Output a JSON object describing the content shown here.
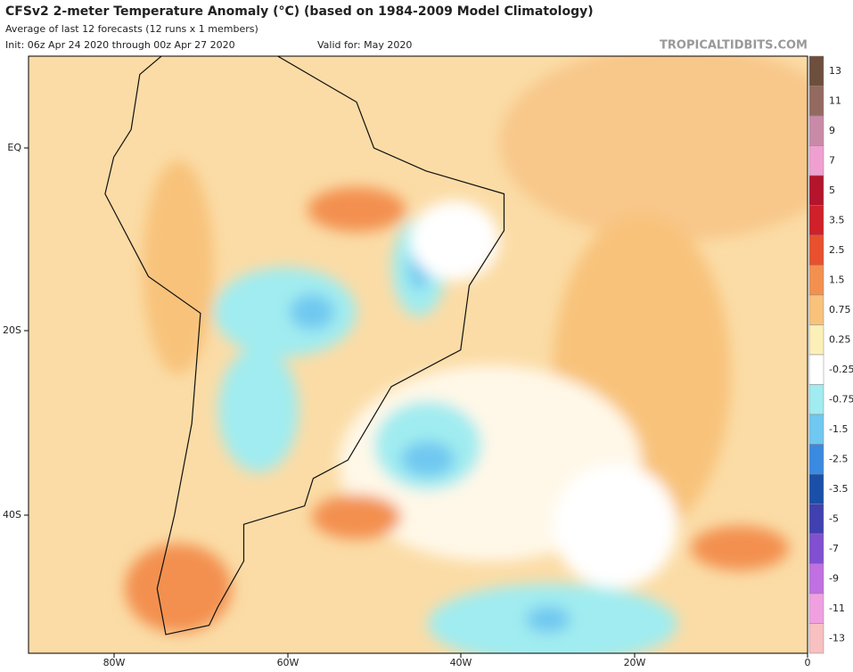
{
  "header": {
    "title": "CFSv2 2-meter Temperature Anomaly (°C) (based on 1984-2009 Model Climatology)",
    "subtitle": "Average of last 12 forecasts (12 runs x 1 members)",
    "init": "Init: 06z Apr 24 2020 through 00z Apr 27 2020",
    "valid": "Valid for: May 2020",
    "watermark": "TROPICALTIDBITS.COM"
  },
  "map": {
    "lon_labels": [
      "80W",
      "60W",
      "40W",
      "20W",
      "0"
    ],
    "lat_labels": [
      "EQ",
      "20S",
      "40S"
    ]
  },
  "colorbar": {
    "labels": [
      "13",
      "11",
      "9",
      "7",
      "5",
      "3.5",
      "2.5",
      "1.5",
      "0.75",
      "0.25",
      "-0.25",
      "-0.75",
      "-1.5",
      "-2.5",
      "-3.5",
      "-5",
      "-7",
      "-9",
      "-11",
      "-13"
    ],
    "colors": [
      "#6e4e3c",
      "#946a60",
      "#c98aa8",
      "#f0a0d0",
      "#b4142c",
      "#d0202a",
      "#e8502e",
      "#f39050",
      "#f8c27a",
      "#fcefb8",
      "#ffffff",
      "#a0ecf0",
      "#70c8f0",
      "#3a8ae0",
      "#1a50a8",
      "#4040b0",
      "#8050d0",
      "#c070e0",
      "#f0a0e0",
      "#f8c0c0"
    ]
  }
}
